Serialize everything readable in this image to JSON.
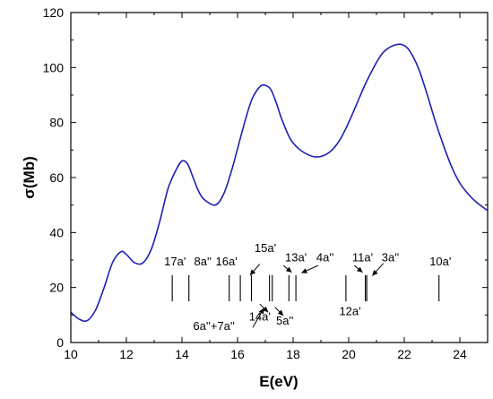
{
  "chart_data": {
    "type": "line",
    "xlabel": "E(eV)",
    "ylabel": "σ(Mb)",
    "xlim": [
      10,
      25
    ],
    "ylim": [
      0,
      120
    ],
    "x_ticks": [
      10,
      12,
      14,
      16,
      18,
      20,
      22,
      24
    ],
    "y_ticks": [
      0,
      20,
      40,
      60,
      80,
      100,
      120
    ],
    "grid": false,
    "line_color": "#1f1fb4",
    "series": [
      {
        "x": [
          10.0,
          10.3,
          10.6,
          10.9,
          11.2,
          11.5,
          11.8,
          12.0,
          12.3,
          12.6,
          12.9,
          13.2,
          13.5,
          13.8,
          14.0,
          14.2,
          14.4,
          14.6,
          14.8,
          15.2,
          15.5,
          15.8,
          16.2,
          16.5,
          16.8,
          17.0,
          17.2,
          17.4,
          17.6,
          17.9,
          18.2,
          18.5,
          18.8,
          19.1,
          19.4,
          19.7,
          20.0,
          20.3,
          20.6,
          20.9,
          21.2,
          21.5,
          21.8,
          22.0,
          22.2,
          22.5,
          22.8,
          23.1,
          23.4,
          23.7,
          24.0,
          24.3,
          24.6,
          25.0
        ],
        "y": [
          11,
          8.5,
          8,
          12,
          20,
          29,
          33,
          32,
          29,
          29,
          34,
          44,
          56,
          63,
          66,
          65,
          60,
          55,
          52,
          50,
          54,
          63,
          78,
          88,
          93,
          93.5,
          92,
          87,
          81,
          74,
          70.5,
          68.5,
          67.5,
          68,
          70,
          74,
          80,
          87,
          94,
          100,
          105,
          107.5,
          108.5,
          108,
          106,
          100,
          91,
          81,
          72,
          64,
          58,
          54,
          51,
          48
        ]
      }
    ],
    "sticks": [
      {
        "x": 13.65,
        "y_top": 24.5
      },
      {
        "x": 14.25,
        "y_top": 24.5
      },
      {
        "x": 15.7,
        "y_top": 24.5
      },
      {
        "x": 16.1,
        "y_top": 24.5
      },
      {
        "x": 16.5,
        "y_top": 24.5
      },
      {
        "x": 17.15,
        "y_top": 24.5
      },
      {
        "x": 17.25,
        "y_top": 24.5
      },
      {
        "x": 17.85,
        "y_top": 24.5
      },
      {
        "x": 18.1,
        "y_top": 24.5
      },
      {
        "x": 19.9,
        "y_top": 24.5
      },
      {
        "x": 20.6,
        "y_top": 24.5
      },
      {
        "x": 20.65,
        "y_top": 24.5
      },
      {
        "x": 23.25,
        "y_top": 24.5
      }
    ],
    "annotations": [
      {
        "text": "17a'",
        "x": 13.75,
        "y": 28
      },
      {
        "text": "8a''",
        "x": 14.75,
        "y": 28
      },
      {
        "text": "16a'",
        "x": 15.6,
        "y": 28
      },
      {
        "text": "15a'",
        "x": 17.0,
        "y": 33
      },
      {
        "text": "13a'",
        "x": 18.1,
        "y": 29.5
      },
      {
        "text": "4a''",
        "x": 19.15,
        "y": 29.5
      },
      {
        "text": "11a'",
        "x": 20.5,
        "y": 29.5
      },
      {
        "text": "3a''",
        "x": 21.5,
        "y": 29.5
      },
      {
        "text": "10a'",
        "x": 23.3,
        "y": 28
      },
      {
        "text": "6a''+7a''",
        "x": 15.15,
        "y": 4.5
      },
      {
        "text": "14a'",
        "x": 16.8,
        "y": 8
      },
      {
        "text": "5a''",
        "x": 17.7,
        "y": 6.5
      },
      {
        "text": "12a'",
        "x": 20.05,
        "y": 10
      }
    ],
    "arrows": [
      {
        "from": [
          16.8,
          28.5
        ],
        "to": [
          16.45,
          24.5
        ]
      },
      {
        "from": [
          17.65,
          28.0
        ],
        "to": [
          17.95,
          25.5
        ]
      },
      {
        "from": [
          18.9,
          28.0
        ],
        "to": [
          18.3,
          25.3
        ]
      },
      {
        "from": [
          20.2,
          28.0
        ],
        "to": [
          20.5,
          25.5
        ]
      },
      {
        "from": [
          21.25,
          28.8
        ],
        "to": [
          20.85,
          24.3
        ]
      },
      {
        "from": [
          16.55,
          5.5
        ],
        "to": [
          16.95,
          12.5
        ]
      },
      {
        "from": [
          16.8,
          14.0
        ],
        "to": [
          17.1,
          11.0
        ]
      },
      {
        "from": [
          17.35,
          12.8
        ],
        "to": [
          17.65,
          9.8
        ]
      }
    ]
  }
}
